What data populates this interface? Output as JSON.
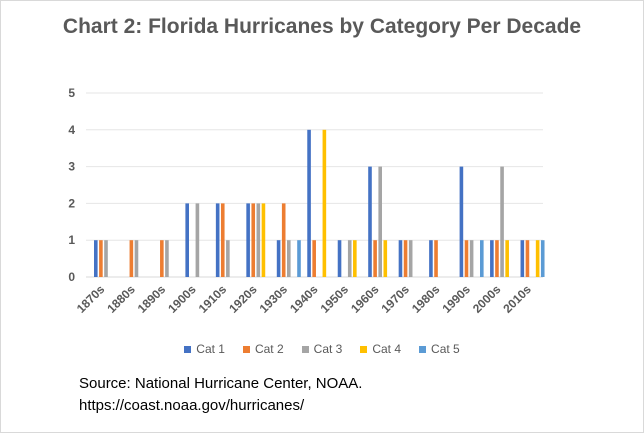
{
  "chart_data": {
    "type": "bar",
    "title": "Chart 2: Florida Hurricanes by Category Per Decade",
    "xlabel": "",
    "ylabel": "",
    "ylim": [
      0,
      5
    ],
    "yticks": [
      "0",
      "1",
      "2",
      "3",
      "4",
      "5"
    ],
    "grid": true,
    "legend_position": "bottom",
    "categories": [
      "1870s",
      "1880s",
      "1890s",
      "1900s",
      "1910s",
      "1920s",
      "1930s",
      "1940s",
      "1950s",
      "1960s",
      "1970s",
      "1980s",
      "1990s",
      "2000s",
      "2010s"
    ],
    "series": [
      {
        "name": "Cat 1",
        "color": "#4472c4",
        "values": [
          1,
          0,
          0,
          2,
          2,
          2,
          1,
          4,
          1,
          3,
          1,
          1,
          3,
          1,
          1
        ]
      },
      {
        "name": "Cat 2",
        "color": "#ed7d31",
        "values": [
          1,
          1,
          1,
          0,
          2,
          2,
          2,
          1,
          0,
          1,
          1,
          1,
          1,
          1,
          1
        ]
      },
      {
        "name": "Cat 3",
        "color": "#a5a5a5",
        "values": [
          1,
          1,
          1,
          2,
          1,
          2,
          1,
          0,
          1,
          3,
          1,
          0,
          1,
          3,
          0
        ]
      },
      {
        "name": "Cat 4",
        "color": "#ffc000",
        "values": [
          0,
          0,
          0,
          0,
          0,
          2,
          0,
          4,
          1,
          1,
          0,
          0,
          0,
          1,
          1
        ]
      },
      {
        "name": "Cat 5",
        "color": "#5b9bd5",
        "values": [
          0,
          0,
          0,
          0,
          0,
          0,
          1,
          0,
          0,
          0,
          0,
          0,
          1,
          0,
          1
        ]
      }
    ]
  },
  "source": {
    "line1": "Source:  National Hurricane  Center,  NOAA.",
    "line2": "https://coast.noaa.gov/hurricanes/"
  }
}
